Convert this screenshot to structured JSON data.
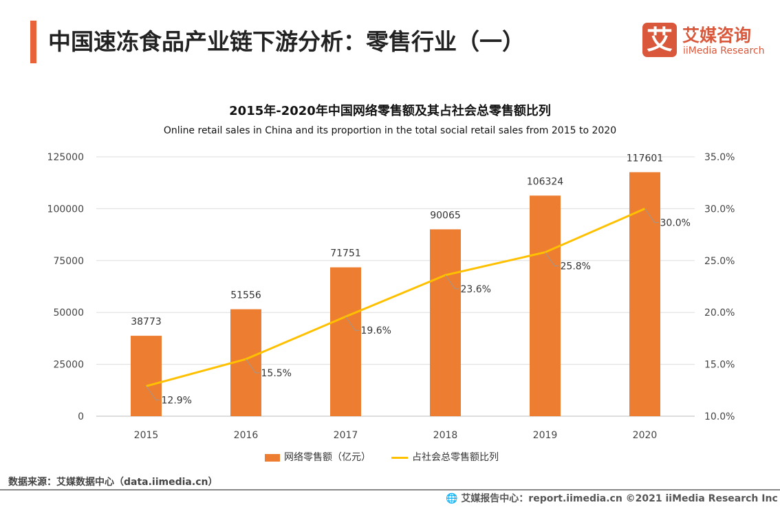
{
  "header": {
    "title": "中国速冻食品产业链下游分析：零售行业（一）",
    "logo_mark": "艾",
    "logo_cn": "艾媒咨询",
    "logo_en": "iiMedia Research"
  },
  "colors": {
    "accent": "#e8633a",
    "bar": "#ed7d31",
    "line": "#ffc000",
    "brand": "#d9583b"
  },
  "chart_data": {
    "type": "bar+line",
    "title": "2015年-2020年中国网络零售额及其占社会总零售额比列",
    "subtitle": "Online retail sales in China and its proportion in the total social retail sales from 2015 to 2020",
    "categories": [
      "2015",
      "2016",
      "2017",
      "2018",
      "2019",
      "2020"
    ],
    "series": [
      {
        "name": "网络零售额（亿元）",
        "type": "bar",
        "axis": "left",
        "values": [
          38773,
          51556,
          71751,
          90065,
          106324,
          117601
        ],
        "labels": [
          "38773",
          "51556",
          "71751",
          "90065",
          "106324",
          "117601"
        ]
      },
      {
        "name": "占社会总零售额比列",
        "type": "line",
        "axis": "right",
        "values": [
          12.9,
          15.5,
          19.6,
          23.6,
          25.8,
          30.0
        ],
        "labels": [
          "12.9%",
          "15.5%",
          "19.6%",
          "23.6%",
          "25.8%",
          "30.0%"
        ]
      }
    ],
    "left_axis": {
      "ylim": [
        0,
        125000
      ],
      "ticks": [
        "0",
        "25000",
        "50000",
        "75000",
        "100000",
        "125000"
      ]
    },
    "right_axis": {
      "ylim": [
        10,
        35
      ],
      "ticks": [
        "10.0%",
        "15.0%",
        "20.0%",
        "25.0%",
        "30.0%",
        "35.0%"
      ]
    },
    "grid": true,
    "legend": "bottom"
  },
  "footer": {
    "source": "数据来源：艾媒数据中心（data.iimedia.cn）",
    "credit": "艾媒报告中心：report.iimedia.cn   ©2021  iiMedia Research  Inc"
  }
}
